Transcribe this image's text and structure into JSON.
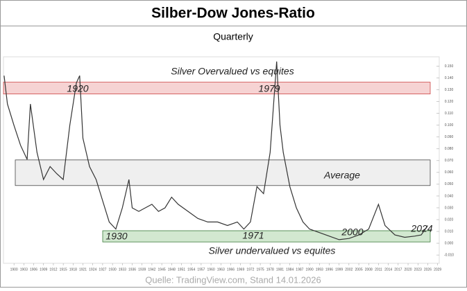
{
  "chart_data": {
    "type": "line",
    "title": "Silber-Dow Jones-Ratio",
    "subtitle": "Quarterly",
    "source": "Quelle: TradingView.com, Stand 14.01.2026",
    "color": "#333333",
    "x": [
      1897,
      1898,
      1900,
      1902,
      1904,
      1905,
      1907,
      1909,
      1911,
      1913,
      1915,
      1917,
      1919,
      1920,
      1921,
      1923,
      1925,
      1927,
      1929,
      1931,
      1933,
      1935,
      1936,
      1938,
      1940,
      1942,
      1944,
      1946,
      1948,
      1950,
      1953,
      1956,
      1959,
      1962,
      1965,
      1968,
      1970,
      1972,
      1974,
      1976,
      1978,
      1980,
      1981,
      1982,
      1984,
      1986,
      1988,
      1990,
      1993,
      1996,
      1999,
      2002,
      2005,
      2008,
      2011,
      2013,
      2016,
      2019,
      2022,
      2024,
      2026
    ],
    "values": [
      0.142,
      0.118,
      0.1,
      0.083,
      0.071,
      0.118,
      0.077,
      0.054,
      0.065,
      0.059,
      0.054,
      0.1,
      0.136,
      0.142,
      0.089,
      0.065,
      0.054,
      0.036,
      0.018,
      0.012,
      0.03,
      0.054,
      0.03,
      0.027,
      0.03,
      0.033,
      0.027,
      0.03,
      0.039,
      0.033,
      0.027,
      0.021,
      0.018,
      0.018,
      0.015,
      0.018,
      0.012,
      0.018,
      0.048,
      0.042,
      0.077,
      0.154,
      0.1,
      0.077,
      0.048,
      0.03,
      0.018,
      0.012,
      0.009,
      0.006,
      0.003,
      0.004,
      0.007,
      0.012,
      0.033,
      0.015,
      0.007,
      0.005,
      0.006,
      0.007,
      0.015
    ],
    "xlim": [
      1896.8,
      2029.5
    ],
    "xticks": [
      1900,
      1903,
      1906,
      1909,
      1912,
      1915,
      1918,
      1921,
      1924,
      1927,
      1930,
      1933,
      1936,
      1939,
      1942,
      1945,
      1948,
      1951,
      1954,
      1957,
      1960,
      1963,
      1966,
      1969,
      1972,
      1975,
      1978,
      1981,
      1984,
      1987,
      1990,
      1993,
      1996,
      1999,
      2002,
      2005,
      2008,
      2011,
      2014,
      2017,
      2020,
      2023,
      2026,
      2029
    ],
    "ylim": [
      -0.017,
      0.158
    ],
    "yticks": [
      {
        "value": -0.01,
        "label": "-0.010"
      },
      {
        "value": 0,
        "label": "0.000"
      },
      {
        "value": 0.01,
        "label": "0.010"
      },
      {
        "value": 0.02,
        "label": "0.020"
      },
      {
        "value": 0.03,
        "label": "0.030"
      },
      {
        "value": 0.04,
        "label": "0.040"
      },
      {
        "value": 0.05,
        "label": "0.050"
      },
      {
        "value": 0.06,
        "label": "0.060"
      },
      {
        "value": 0.07,
        "label": "0.070"
      },
      {
        "value": 0.08,
        "label": "0.080"
      },
      {
        "value": 0.09,
        "label": "0.090"
      },
      {
        "value": 0.1,
        "label": "0.100"
      },
      {
        "value": 0.11,
        "label": "0.110"
      },
      {
        "value": 0.12,
        "label": "0.120"
      },
      {
        "value": 0.13,
        "label": "0.130"
      },
      {
        "value": 0.14,
        "label": "0.140"
      },
      {
        "value": 0.15,
        "label": "0.150"
      }
    ],
    "bands": [
      {
        "label": "Silver Overvalued vs equites",
        "from": 0.1265,
        "to": 0.1365,
        "color": "#f6d3d3",
        "border": "#c44"
      },
      {
        "label": "Average",
        "from": 0.0489,
        "to": 0.0706,
        "color": "#efefef",
        "border": "#444"
      },
      {
        "label": "Silver undervalued vs equites",
        "from": 0.0011,
        "to": 0.0106,
        "color": "#d2e8d0",
        "border": "#3a7a3a"
      }
    ],
    "annotations": [
      "1920",
      "1979",
      "1930",
      "1971",
      "2000",
      "2024"
    ]
  }
}
